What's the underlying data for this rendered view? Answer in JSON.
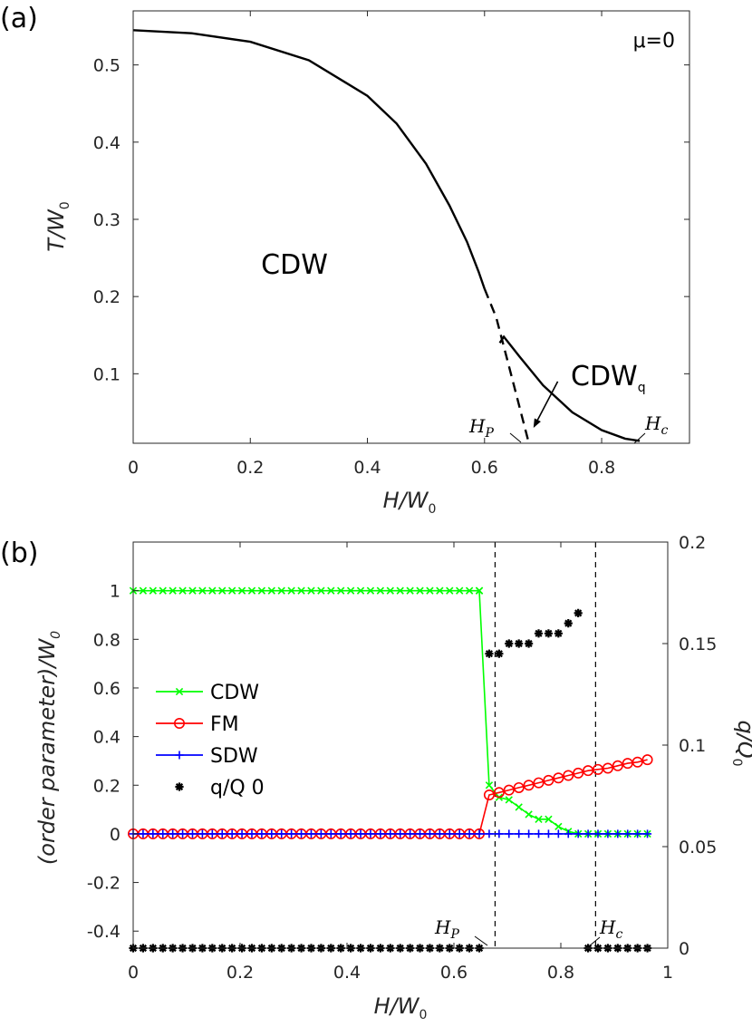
{
  "chart_data": [
    {
      "type": "line",
      "panel_label": "(a)",
      "xlabel": "H/W",
      "xlabel_sub": "0",
      "ylabel": "T/W",
      "ylabel_sub": "0",
      "xlim": [
        0,
        0.95
      ],
      "ylim": [
        0.01,
        0.57
      ],
      "xticks": [
        0,
        0.2,
        0.4,
        0.6,
        0.8
      ],
      "xtick_labels": [
        "0",
        "0.2",
        "0.4",
        "0.6",
        "0.8"
      ],
      "yticks": [
        0.1,
        0.2,
        0.3,
        0.4,
        0.5
      ],
      "ytick_labels": [
        "0.1",
        "0.2",
        "0.3",
        "0.4",
        "0.5"
      ],
      "box": true,
      "grid": false,
      "annotation_mu": "μ=0",
      "region_cdw": "CDW",
      "region_cdwq": "CDW",
      "region_cdwq_sub": "q",
      "hp_label": "H",
      "hp_sub": "P",
      "hc_label": "H",
      "hc_sub": "c",
      "series": [
        {
          "style": "solid",
          "x": [
            0,
            0.1,
            0.2,
            0.3,
            0.4,
            0.45,
            0.5,
            0.54,
            0.57,
            0.59,
            0.6
          ],
          "y": [
            0.545,
            0.541,
            0.53,
            0.506,
            0.46,
            0.424,
            0.372,
            0.318,
            0.271,
            0.232,
            0.21
          ]
        },
        {
          "style": "dashed",
          "x": [
            0.6,
            0.62,
            0.645,
            0.675
          ],
          "y": [
            0.21,
            0.173,
            0.1,
            0.012
          ]
        },
        {
          "style": "solid",
          "x": [
            0.626,
            0.633,
            0.66,
            0.7,
            0.75,
            0.8,
            0.84,
            0.865
          ],
          "y": [
            0.14,
            0.148,
            0.122,
            0.085,
            0.05,
            0.027,
            0.016,
            0.013
          ]
        }
      ],
      "arrow_cdwq": {
        "from": [
          0.725,
          0.09
        ],
        "to": [
          0.685,
          0.032
        ]
      }
    },
    {
      "type": "line",
      "panel_label": "(b)",
      "xlabel": "H/W",
      "xlabel_sub": "0",
      "ylabel": "(order parameter)/W",
      "ylabel_sub": "0",
      "ylabel_right": "q/Q",
      "ylabel_right_sub": "0",
      "xlim": [
        0,
        1
      ],
      "ylim": [
        -0.47,
        1.2
      ],
      "ylim_right": [
        0,
        0.2
      ],
      "xticks": [
        0,
        0.2,
        0.4,
        0.6,
        0.8,
        1
      ],
      "xtick_labels": [
        "0",
        "0.2",
        "0.4",
        "0.6",
        "0.8",
        "1"
      ],
      "yticks": [
        -0.4,
        -0.2,
        0,
        0.2,
        0.4,
        0.6,
        0.8,
        1
      ],
      "ytick_labels": [
        "-0.4",
        "-0.2",
        "0",
        "0.2",
        "0.4",
        "0.6",
        "0.8",
        "1"
      ],
      "yticks_right": [
        0,
        0.05,
        0.1,
        0.15,
        0.2
      ],
      "ytick_labels_right": [
        "0",
        "0.05",
        "0.1",
        "0.15",
        "0.2"
      ],
      "vlines": [
        0.677,
        0.865
      ],
      "hp_label": "H",
      "hp_sub": "P",
      "hc_label": "H",
      "hc_sub": "c",
      "legend_position": "center-left",
      "series": [
        {
          "name": "CDW",
          "color": "#00ff00",
          "marker": "x",
          "x": [
            0,
            0.0185,
            0.037,
            0.0555,
            0.074,
            0.0925,
            0.111,
            0.1295,
            0.148,
            0.1665,
            0.185,
            0.2035,
            0.222,
            0.2405,
            0.259,
            0.2775,
            0.296,
            0.3145,
            0.333,
            0.3515,
            0.37,
            0.3885,
            0.407,
            0.4255,
            0.444,
            0.4625,
            0.481,
            0.4995,
            0.518,
            0.5365,
            0.555,
            0.5735,
            0.592,
            0.6105,
            0.629,
            0.6475,
            0.6475,
            0.666,
            0.6845,
            0.703,
            0.7215,
            0.74,
            0.7585,
            0.777,
            0.7955,
            0.814,
            0.8325,
            0.851,
            0.8695,
            0.888,
            0.9065,
            0.925,
            0.9435,
            0.962
          ],
          "y": [
            1,
            1,
            1,
            1,
            1,
            1,
            1,
            1,
            1,
            1,
            1,
            1,
            1,
            1,
            1,
            1,
            1,
            1,
            1,
            1,
            1,
            1,
            1,
            1,
            1,
            1,
            1,
            1,
            1,
            1,
            1,
            1,
            1,
            1,
            1,
            1,
            1,
            0.2,
            0.15,
            0.14,
            0.11,
            0.08,
            0.06,
            0.06,
            0.03,
            0.01,
            0,
            0,
            0,
            0,
            0,
            0,
            0,
            0
          ]
        },
        {
          "name": "FM",
          "color": "#ff0000",
          "marker": "o",
          "x": [
            0,
            0.0185,
            0.037,
            0.0555,
            0.074,
            0.0925,
            0.111,
            0.1295,
            0.148,
            0.1665,
            0.185,
            0.2035,
            0.222,
            0.2405,
            0.259,
            0.2775,
            0.296,
            0.3145,
            0.333,
            0.3515,
            0.37,
            0.3885,
            0.407,
            0.4255,
            0.444,
            0.4625,
            0.481,
            0.4995,
            0.518,
            0.5365,
            0.555,
            0.5735,
            0.592,
            0.6105,
            0.629,
            0.6475,
            0.666,
            0.6845,
            0.703,
            0.7215,
            0.74,
            0.7585,
            0.777,
            0.7955,
            0.814,
            0.8325,
            0.851,
            0.8695,
            0.888,
            0.9065,
            0.925,
            0.9435,
            0.962
          ],
          "y": [
            0,
            0,
            0,
            0,
            0,
            0,
            0,
            0,
            0,
            0,
            0,
            0,
            0,
            0,
            0,
            0,
            0,
            0,
            0,
            0,
            0,
            0,
            0,
            0,
            0,
            0,
            0,
            0,
            0,
            0,
            0,
            0,
            0,
            0,
            0,
            0,
            0.16,
            0.17,
            0.18,
            0.19,
            0.2,
            0.21,
            0.22,
            0.23,
            0.24,
            0.25,
            0.26,
            0.265,
            0.27,
            0.28,
            0.29,
            0.295,
            0.305
          ]
        },
        {
          "name": "SDW",
          "color": "#0000ff",
          "marker": "+",
          "x": [
            0,
            0.0185,
            0.037,
            0.0555,
            0.074,
            0.0925,
            0.111,
            0.1295,
            0.148,
            0.1665,
            0.185,
            0.2035,
            0.222,
            0.2405,
            0.259,
            0.2775,
            0.296,
            0.3145,
            0.333,
            0.3515,
            0.37,
            0.3885,
            0.407,
            0.4255,
            0.444,
            0.4625,
            0.481,
            0.4995,
            0.518,
            0.5365,
            0.555,
            0.5735,
            0.592,
            0.6105,
            0.629,
            0.6475,
            0.666,
            0.6845,
            0.703,
            0.7215,
            0.74,
            0.7585,
            0.777,
            0.7955,
            0.814,
            0.8325,
            0.851,
            0.8695,
            0.888,
            0.9065,
            0.925,
            0.9435,
            0.962
          ],
          "y": [
            0,
            0,
            0,
            0,
            0,
            0,
            0,
            0,
            0,
            0,
            0,
            0,
            0,
            0,
            0,
            0,
            0,
            0,
            0,
            0,
            0,
            0,
            0,
            0,
            0,
            0,
            0,
            0,
            0,
            0,
            0,
            0,
            0,
            0,
            0,
            0,
            0,
            0,
            0,
            0,
            0,
            0,
            0,
            0,
            0,
            0,
            0,
            0,
            0,
            0,
            0,
            0,
            0
          ]
        },
        {
          "name": "q/Q 0",
          "color": "#000000",
          "marker": "*",
          "axis": "right",
          "x": [
            0,
            0.0185,
            0.037,
            0.0555,
            0.074,
            0.0925,
            0.111,
            0.1295,
            0.148,
            0.1665,
            0.185,
            0.2035,
            0.222,
            0.2405,
            0.259,
            0.2775,
            0.296,
            0.3145,
            0.333,
            0.3515,
            0.37,
            0.3885,
            0.407,
            0.4255,
            0.444,
            0.4625,
            0.481,
            0.4995,
            0.518,
            0.5365,
            0.555,
            0.5735,
            0.592,
            0.6105,
            0.629,
            0.6475,
            0.666,
            0.6845,
            0.703,
            0.7215,
            0.74,
            0.7585,
            0.777,
            0.7955,
            0.814,
            0.8325,
            0.851,
            0.8695,
            0.888,
            0.9065,
            0.925,
            0.9435,
            0.962
          ],
          "y": [
            0,
            0,
            0,
            0,
            0,
            0,
            0,
            0,
            0,
            0,
            0,
            0,
            0,
            0,
            0,
            0,
            0,
            0,
            0,
            0,
            0,
            0,
            0,
            0,
            0,
            0,
            0,
            0,
            0,
            0,
            0,
            0,
            0,
            0,
            0,
            0,
            0.145,
            0.145,
            0.15,
            0.15,
            0.15,
            0.155,
            0.155,
            0.155,
            0.16,
            0.165,
            0,
            0,
            0,
            0,
            0,
            0,
            0
          ]
        }
      ]
    }
  ]
}
